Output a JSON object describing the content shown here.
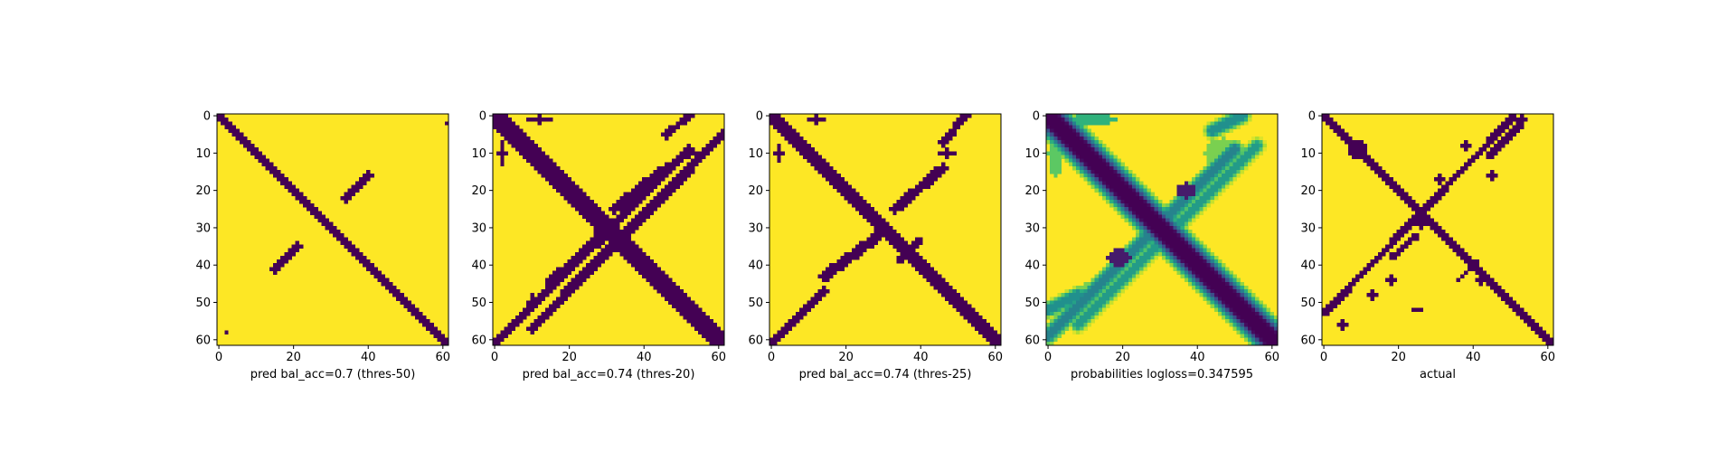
{
  "chart_data": [
    {
      "type": "heatmap",
      "xlabel": "pred bal_acc=0.7 (thres-50)",
      "xticks": [
        0,
        20,
        40,
        60
      ],
      "yticks": [
        0,
        10,
        20,
        30,
        40,
        50,
        60
      ],
      "xlim": [
        0,
        61
      ],
      "ylim": [
        61,
        0
      ],
      "size": 62,
      "colormap": "viridis",
      "colors": {
        "contact": "#440154",
        "no_contact": "#fde725"
      },
      "features": [
        {
          "type": "band",
          "x0": 0,
          "y0": 0,
          "x1": 61,
          "y1": 61,
          "width": 1.3
        },
        {
          "type": "band",
          "x0": 34,
          "y0": 22,
          "x1": 40,
          "y1": 16,
          "width": 1.2
        },
        {
          "type": "band",
          "x0": 15,
          "y0": 41,
          "x1": 21,
          "y1": 35,
          "width": 1.2
        },
        {
          "type": "blob",
          "x": 61,
          "y": 2,
          "rx": 0.6,
          "ry": 0.6
        },
        {
          "type": "blob",
          "x": 2,
          "y": 58,
          "rx": 0.6,
          "ry": 0.6
        }
      ]
    },
    {
      "type": "heatmap",
      "xlabel": "pred bal_acc=0.74 (thres-20)",
      "xticks": [
        0,
        20,
        40,
        60
      ],
      "yticks": [
        0,
        10,
        20,
        30,
        40,
        50,
        60
      ],
      "xlim": [
        0,
        61
      ],
      "ylim": [
        61,
        0
      ],
      "size": 62,
      "colormap": "viridis",
      "colors": {
        "contact": "#440154",
        "no_contact": "#fde725"
      },
      "features": [
        {
          "type": "band",
          "x0": 0,
          "y0": 0,
          "x1": 61,
          "y1": 61,
          "width": 2.2
        },
        {
          "type": "band",
          "x0": 0,
          "y0": 61,
          "x1": 52,
          "y1": 9,
          "width": 1.0
        },
        {
          "type": "band",
          "x0": 10,
          "y0": 57,
          "x1": 61,
          "y1": 5,
          "width": 1.3
        },
        {
          "type": "band",
          "x0": 15,
          "y0": 45,
          "x1": 30,
          "y1": 31,
          "width": 1.6
        },
        {
          "type": "band",
          "x0": 32,
          "y0": 25,
          "x1": 46,
          "y1": 14,
          "width": 1.4
        },
        {
          "type": "band",
          "x0": 46,
          "y0": 5,
          "x1": 52,
          "y1": 0,
          "width": 1.0
        },
        {
          "type": "blob",
          "x": 29,
          "y": 30,
          "rx": 2.8,
          "ry": 2.8
        },
        {
          "type": "blob",
          "x": 2,
          "y": 10,
          "rx": 1.0,
          "ry": 3.0
        },
        {
          "type": "blob",
          "x": 12,
          "y": 1,
          "rx": 3.0,
          "ry": 1.0
        },
        {
          "type": "blob",
          "x": 52,
          "y": 10,
          "rx": 2.0,
          "ry": 1.0
        },
        {
          "type": "blob",
          "x": 10,
          "y": 50,
          "rx": 1.0,
          "ry": 2.0
        }
      ]
    },
    {
      "type": "heatmap",
      "xlabel": "pred bal_acc=0.74 (thres-25)",
      "xticks": [
        0,
        20,
        40,
        60
      ],
      "yticks": [
        0,
        10,
        20,
        30,
        40,
        50,
        60
      ],
      "xlim": [
        0,
        61
      ],
      "ylim": [
        61,
        0
      ],
      "size": 62,
      "colormap": "viridis",
      "colors": {
        "contact": "#440154",
        "no_contact": "#fde725"
      },
      "features": [
        {
          "type": "band",
          "x0": 0,
          "y0": 0,
          "x1": 61,
          "y1": 61,
          "width": 1.9
        },
        {
          "type": "band",
          "x0": 0,
          "y0": 61,
          "x1": 14,
          "y1": 47,
          "width": 1.0
        },
        {
          "type": "band",
          "x0": 14,
          "y0": 43,
          "x1": 29,
          "y1": 32,
          "width": 1.4
        },
        {
          "type": "band",
          "x0": 33,
          "y0": 25,
          "x1": 46,
          "y1": 14,
          "width": 1.3
        },
        {
          "type": "band",
          "x0": 46,
          "y0": 7,
          "x1": 52,
          "y1": 0,
          "width": 1.0
        },
        {
          "type": "band",
          "x0": 34,
          "y0": 39,
          "x1": 40,
          "y1": 33,
          "width": 0.9
        },
        {
          "type": "blob",
          "x": 2,
          "y": 10,
          "rx": 1.0,
          "ry": 2.0
        },
        {
          "type": "blob",
          "x": 12,
          "y": 1,
          "rx": 2.0,
          "ry": 1.0
        },
        {
          "type": "blob",
          "x": 47,
          "y": 10,
          "rx": 2.0,
          "ry": 1.0
        }
      ]
    },
    {
      "type": "heatmap",
      "xlabel": "probabilities logloss=0.347595",
      "xticks": [
        0,
        20,
        40,
        60
      ],
      "yticks": [
        0,
        10,
        20,
        30,
        40,
        50,
        60
      ],
      "xlim": [
        0,
        61
      ],
      "ylim": [
        61,
        0
      ],
      "size": 62,
      "colormap": "viridis",
      "colors": {
        "contact": "#440154",
        "no_contact": "#fde725"
      },
      "features": [
        {
          "type": "band",
          "x0": 0,
          "y0": 0,
          "x1": 61,
          "y1": 61,
          "width": 2.0,
          "glow": 3.5
        },
        {
          "type": "band",
          "x0": 0,
          "y0": 59,
          "x1": 50,
          "y1": 9,
          "width": 1.0,
          "level": 0.55,
          "glow": 1.8
        },
        {
          "type": "band",
          "x0": 8,
          "y0": 56,
          "x1": 56,
          "y1": 8,
          "width": 0.8,
          "level": 0.45,
          "glow": 1.6
        },
        {
          "type": "band",
          "x0": 0,
          "y0": 52,
          "x1": 8,
          "y1": 48,
          "width": 1.0,
          "level": 0.5,
          "glow": 1.5
        },
        {
          "type": "band",
          "x0": 44,
          "y0": 4,
          "x1": 52,
          "y1": 0,
          "width": 1.0,
          "level": 0.5,
          "glow": 1.5
        },
        {
          "type": "blob",
          "x": 19,
          "y": 38,
          "rx": 3.0,
          "ry": 2.2,
          "level": 0.92
        },
        {
          "type": "blob",
          "x": 37,
          "y": 20,
          "rx": 2.6,
          "ry": 2.0,
          "level": 0.92
        },
        {
          "type": "blob",
          "x": 2,
          "y": 10,
          "rx": 2.0,
          "ry": 6.0,
          "level": 0.25
        },
        {
          "type": "blob",
          "x": 12,
          "y": 1,
          "rx": 6.0,
          "ry": 1.5,
          "level": 0.35
        },
        {
          "type": "blob",
          "x": 47,
          "y": 10,
          "rx": 5.0,
          "ry": 4.0,
          "level": 0.2
        },
        {
          "type": "blob",
          "x": 10,
          "y": 50,
          "rx": 4.0,
          "ry": 5.0,
          "level": 0.2
        }
      ]
    },
    {
      "type": "heatmap",
      "xlabel": "actual",
      "xticks": [
        0,
        20,
        40,
        60
      ],
      "yticks": [
        0,
        10,
        20,
        30,
        40,
        50,
        60
      ],
      "xlim": [
        0,
        61
      ],
      "ylim": [
        61,
        0
      ],
      "size": 62,
      "colormap": "viridis",
      "colors": {
        "contact": "#440154",
        "no_contact": "#fde725"
      },
      "features": [
        {
          "type": "band",
          "x0": 0,
          "y0": 0,
          "x1": 61,
          "y1": 61,
          "width": 1.4
        },
        {
          "type": "band",
          "x0": 0,
          "y0": 53,
          "x1": 51,
          "y1": 0,
          "width": 0.9
        },
        {
          "type": "band",
          "x0": 18,
          "y0": 38,
          "x1": 25,
          "y1": 32,
          "width": 0.8
        },
        {
          "type": "band",
          "x0": 44,
          "y0": 11,
          "x1": 53,
          "y1": 2,
          "width": 0.8
        },
        {
          "type": "band",
          "x0": 36,
          "y0": 44,
          "x1": 41,
          "y1": 39,
          "width": 0.7
        },
        {
          "type": "blob",
          "x": 9,
          "y": 9,
          "rx": 2.8,
          "ry": 2.8
        },
        {
          "type": "blob",
          "x": 26,
          "y": 28,
          "rx": 2.0,
          "ry": 2.0
        },
        {
          "type": "blob",
          "x": 42,
          "y": 44,
          "rx": 1.8,
          "ry": 1.2
        },
        {
          "type": "blob",
          "x": 18,
          "y": 44,
          "rx": 1.0,
          "ry": 1.0
        },
        {
          "type": "blob",
          "x": 13,
          "y": 48,
          "rx": 1.0,
          "ry": 1.0
        },
        {
          "type": "blob",
          "x": 38,
          "y": 8,
          "rx": 1.0,
          "ry": 1.0
        },
        {
          "type": "blob",
          "x": 31,
          "y": 17,
          "rx": 1.0,
          "ry": 1.0
        },
        {
          "type": "blob",
          "x": 45,
          "y": 16,
          "rx": 1.0,
          "ry": 1.0
        },
        {
          "type": "blob",
          "x": 5,
          "y": 56,
          "rx": 1.0,
          "ry": 1.0
        },
        {
          "type": "blob",
          "x": 25,
          "y": 52,
          "rx": 1.0,
          "ry": 0.6
        },
        {
          "type": "blob",
          "x": 53,
          "y": 1,
          "rx": 1.0,
          "ry": 1.0
        }
      ]
    }
  ]
}
